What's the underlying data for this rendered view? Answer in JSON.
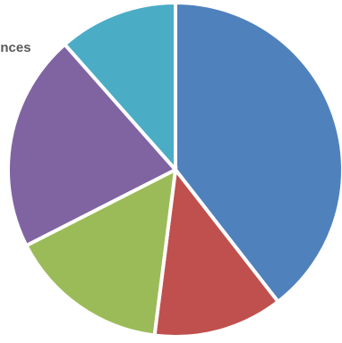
{
  "chart_data": {
    "type": "pie",
    "slices": [
      {
        "label": "",
        "value": 39.5,
        "color": "#4F81BD"
      },
      {
        "label": "",
        "value": 12.5,
        "color": "#C0504D"
      },
      {
        "label": "",
        "value": 15.5,
        "color": "#9BBB59"
      },
      {
        "label": "",
        "value": 21.0,
        "color": "#8064A2"
      },
      {
        "label": "",
        "value": 11.5,
        "color": "#4BACC6"
      }
    ],
    "start_angle_deg": 0,
    "direction": "clockwise",
    "title": "",
    "visible_label": "ences",
    "legend": "none"
  }
}
